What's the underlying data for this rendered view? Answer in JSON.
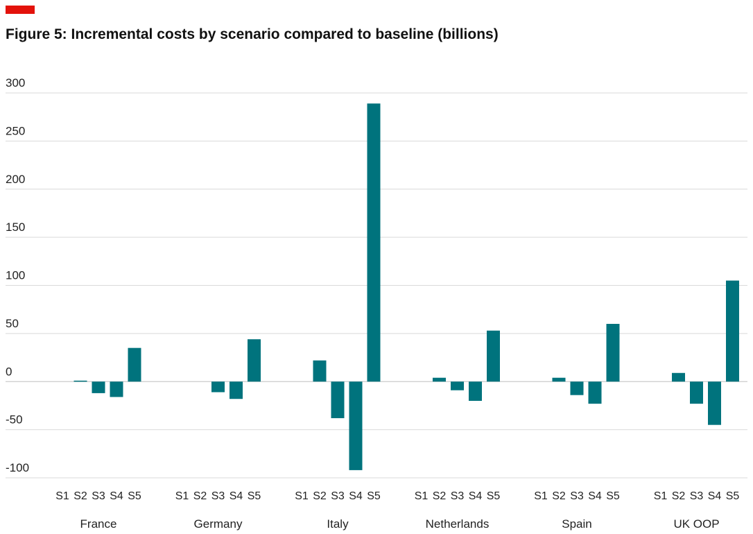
{
  "header": {
    "accent_color": "#e3120b",
    "title": "Figure 5: Incremental costs by scenario compared to baseline (billions)"
  },
  "chart_data": {
    "type": "bar",
    "title": "Figure 5: Incremental costs by scenario compared to baseline (billions)",
    "xlabel": "",
    "ylabel": "",
    "ylim": [
      -100,
      300
    ],
    "yticks": [
      -100,
      -50,
      0,
      50,
      100,
      150,
      200,
      250,
      300
    ],
    "ytick_labels": [
      "-100",
      "-50",
      "0",
      "50",
      "100",
      "150",
      "200",
      "250",
      "300"
    ],
    "grid": true,
    "legend": "none",
    "bar_color": "#00737d",
    "scenarios": [
      "S1",
      "S2",
      "S3",
      "S4",
      "S5"
    ],
    "groups": [
      {
        "name": "France",
        "values": [
          0,
          1,
          -12,
          -16,
          35
        ]
      },
      {
        "name": "Germany",
        "values": [
          0,
          0,
          -11,
          -18,
          44
        ]
      },
      {
        "name": "Italy",
        "values": [
          0,
          22,
          -38,
          -92,
          289
        ]
      },
      {
        "name": "Netherlands",
        "values": [
          0,
          4,
          -9,
          -20,
          53
        ]
      },
      {
        "name": "Spain",
        "values": [
          0,
          4,
          -14,
          -23,
          60
        ]
      },
      {
        "name": "UK OOP",
        "values": [
          0,
          9,
          -23,
          -45,
          105
        ]
      }
    ]
  }
}
